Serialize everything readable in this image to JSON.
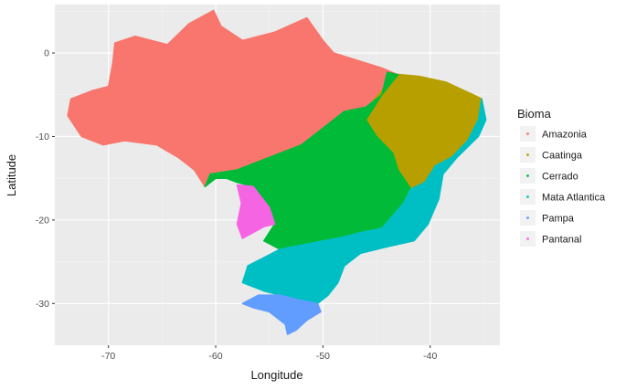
{
  "chart_data": {
    "type": "scatter",
    "xlabel": "Longitude",
    "ylabel": "Latitude",
    "xlim": [
      -75,
      -33.5
    ],
    "ylim": [
      -35,
      5.8
    ],
    "x_ticks": [
      -70,
      -60,
      -50,
      -40
    ],
    "y_ticks": [
      0,
      -10,
      -20,
      -30
    ],
    "grid": true,
    "legend_title": "Bioma",
    "legend_position": "right",
    "series": [
      {
        "name": "Amazonia",
        "color": "#F8766D",
        "outline": [
          [
            -73.8,
            -7.5
          ],
          [
            -73.5,
            -5.5
          ],
          [
            -71.5,
            -4.5
          ],
          [
            -70,
            -4
          ],
          [
            -69.6,
            -1.2
          ],
          [
            -69.4,
            1.2
          ],
          [
            -67.5,
            2
          ],
          [
            -64.5,
            1
          ],
          [
            -62.5,
            3.5
          ],
          [
            -60.2,
            5.1
          ],
          [
            -59.5,
            3.2
          ],
          [
            -57.5,
            1.5
          ],
          [
            -56,
            2
          ],
          [
            -54.5,
            2.5
          ],
          [
            -51.5,
            4.2
          ],
          [
            -50,
            1.5
          ],
          [
            -49,
            0
          ],
          [
            -47,
            -0.8
          ],
          [
            -44.5,
            -1.8
          ],
          [
            -43,
            -2.6
          ],
          [
            -44.5,
            -5
          ],
          [
            -46,
            -6.5
          ],
          [
            -48,
            -7
          ],
          [
            -50,
            -9
          ],
          [
            -52,
            -11
          ],
          [
            -55,
            -12.5
          ],
          [
            -58,
            -14
          ],
          [
            -60,
            -15
          ],
          [
            -61,
            -16
          ],
          [
            -62,
            -14
          ],
          [
            -63.5,
            -12.5
          ],
          [
            -65.5,
            -11
          ],
          [
            -68.5,
            -10.5
          ],
          [
            -70.5,
            -11
          ],
          [
            -72.5,
            -10
          ],
          [
            -73.8,
            -7.5
          ]
        ]
      },
      {
        "name": "Caatinga",
        "color": "#B79F00",
        "outline": [
          [
            -43.5,
            -2.5
          ],
          [
            -41,
            -2.8
          ],
          [
            -38.5,
            -3.5
          ],
          [
            -36,
            -5
          ],
          [
            -35.2,
            -5.5
          ],
          [
            -35.5,
            -8
          ],
          [
            -36.5,
            -10.5
          ],
          [
            -38,
            -12.5
          ],
          [
            -39.5,
            -13.5
          ],
          [
            -40.5,
            -15.5
          ],
          [
            -41.8,
            -16.3
          ],
          [
            -43,
            -14
          ],
          [
            -43.5,
            -12
          ],
          [
            -45,
            -10
          ],
          [
            -46,
            -8
          ],
          [
            -45.5,
            -6
          ],
          [
            -44.5,
            -4.5
          ],
          [
            -43.5,
            -2.5
          ]
        ]
      },
      {
        "name": "Cerrado",
        "color": "#00BA38",
        "outline": [
          [
            -44,
            -2.3
          ],
          [
            -43,
            -2.6
          ],
          [
            -44.5,
            -5
          ],
          [
            -46,
            -8
          ],
          [
            -45,
            -10
          ],
          [
            -43.5,
            -12
          ],
          [
            -43,
            -14
          ],
          [
            -41.8,
            -16.3
          ],
          [
            -42.5,
            -18
          ],
          [
            -43.5,
            -19.5
          ],
          [
            -44.5,
            -21
          ],
          [
            -46.5,
            -21.5
          ],
          [
            -48,
            -22
          ],
          [
            -50,
            -22.5
          ],
          [
            -52,
            -23
          ],
          [
            -54,
            -23.5
          ],
          [
            -55.5,
            -22.5
          ],
          [
            -54.5,
            -20.5
          ],
          [
            -55,
            -18.5
          ],
          [
            -56.5,
            -16
          ],
          [
            -58,
            -15.5
          ],
          [
            -59,
            -15
          ],
          [
            -60,
            -15
          ],
          [
            -61,
            -16
          ],
          [
            -60.5,
            -14.5
          ],
          [
            -58,
            -14
          ],
          [
            -55,
            -12.5
          ],
          [
            -52,
            -11
          ],
          [
            -50,
            -9
          ],
          [
            -48,
            -7
          ],
          [
            -46,
            -6.5
          ],
          [
            -44.5,
            -5
          ],
          [
            -44,
            -2.3
          ]
        ]
      },
      {
        "name": "Mata Atlantica",
        "color": "#00BFC4",
        "outline": [
          [
            -35.2,
            -5.5
          ],
          [
            -34.8,
            -8
          ],
          [
            -35.5,
            -10
          ],
          [
            -37.5,
            -12.5
          ],
          [
            -38.8,
            -14.5
          ],
          [
            -39.2,
            -17.5
          ],
          [
            -40.2,
            -20.5
          ],
          [
            -41.5,
            -22.5
          ],
          [
            -44,
            -23.2
          ],
          [
            -46.5,
            -24
          ],
          [
            -48,
            -25.5
          ],
          [
            -48.6,
            -27.5
          ],
          [
            -49.5,
            -29
          ],
          [
            -50.5,
            -30
          ],
          [
            -52.5,
            -29.5
          ],
          [
            -54,
            -29
          ],
          [
            -55.5,
            -28.5
          ],
          [
            -57.5,
            -27.5
          ],
          [
            -57,
            -25.5
          ],
          [
            -55.5,
            -24.5
          ],
          [
            -54,
            -23.5
          ],
          [
            -52,
            -23
          ],
          [
            -50,
            -22.5
          ],
          [
            -48,
            -22
          ],
          [
            -46.5,
            -21.5
          ],
          [
            -44.5,
            -21
          ],
          [
            -43.5,
            -19.5
          ],
          [
            -42.5,
            -18
          ],
          [
            -41.8,
            -16.3
          ],
          [
            -40.5,
            -15.5
          ],
          [
            -39.5,
            -13.5
          ],
          [
            -38,
            -12.5
          ],
          [
            -36.5,
            -10.5
          ],
          [
            -35.5,
            -8
          ],
          [
            -35.2,
            -5.5
          ]
        ]
      },
      {
        "name": "Pampa",
        "color": "#619CFF",
        "outline": [
          [
            -57.5,
            -30
          ],
          [
            -56,
            -29
          ],
          [
            -54,
            -29
          ],
          [
            -52.5,
            -29.5
          ],
          [
            -50.5,
            -30
          ],
          [
            -50.2,
            -31
          ],
          [
            -51.5,
            -32
          ],
          [
            -52.5,
            -33.2
          ],
          [
            -53.3,
            -33.7
          ],
          [
            -53.5,
            -32.5
          ],
          [
            -55,
            -31
          ],
          [
            -56.5,
            -30.5
          ],
          [
            -57.5,
            -30
          ]
        ]
      },
      {
        "name": "Pantanal",
        "color": "#F564E3",
        "outline": [
          [
            -58,
            -15.8
          ],
          [
            -56.5,
            -16
          ],
          [
            -55,
            -18.5
          ],
          [
            -54.5,
            -20.5
          ],
          [
            -55.5,
            -20.8
          ],
          [
            -56.5,
            -21.5
          ],
          [
            -57.5,
            -22.2
          ],
          [
            -58,
            -20.5
          ],
          [
            -57.6,
            -18
          ],
          [
            -58,
            -15.8
          ]
        ]
      }
    ]
  }
}
